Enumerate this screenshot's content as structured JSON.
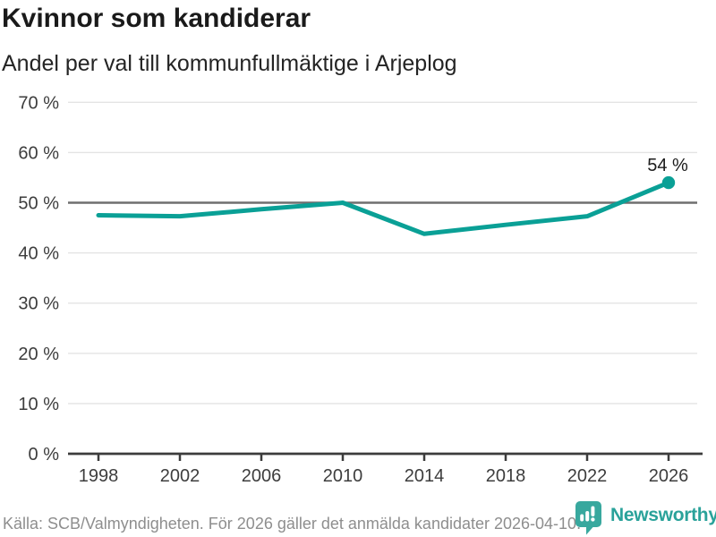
{
  "header": {
    "title": "Kvinnor som kandiderar",
    "subtitle": "Andel per val till kommunfullmäktige i Arjeplog"
  },
  "chart_data": {
    "type": "line",
    "title": "Kvinnor som kandiderar",
    "subtitle": "Andel per val till kommunfullmäktige i Arjeplog",
    "categories": [
      "1998",
      "2002",
      "2006",
      "2010",
      "2014",
      "2018",
      "2022",
      "2026"
    ],
    "values": [
      47.5,
      47.3,
      48.7,
      50.0,
      43.8,
      45.6,
      47.3,
      54.0
    ],
    "ylim": [
      0,
      70
    ],
    "ytick_step": 10,
    "ytick_suffix": " %",
    "highlight_gridline_value": 50,
    "grid": true,
    "legend_position": "none",
    "last_point_label": "54 %",
    "colors": {
      "line": "#0aa096",
      "grid_light": "#e4e4e4",
      "grid_dark": "#6f6f6f",
      "axis": "#3c3c3c",
      "tick_text": "#3d3d3d",
      "annotation_text": "#1c1c1c"
    }
  },
  "footer": {
    "source": "Källa: SCB/Valmyndigheten. För 2026 gäller det anmälda kandidater 2026-04-10.",
    "brand": "Newsworthy",
    "brand_color": "#2aa29a",
    "brand_icon_color": "#38a89e"
  }
}
